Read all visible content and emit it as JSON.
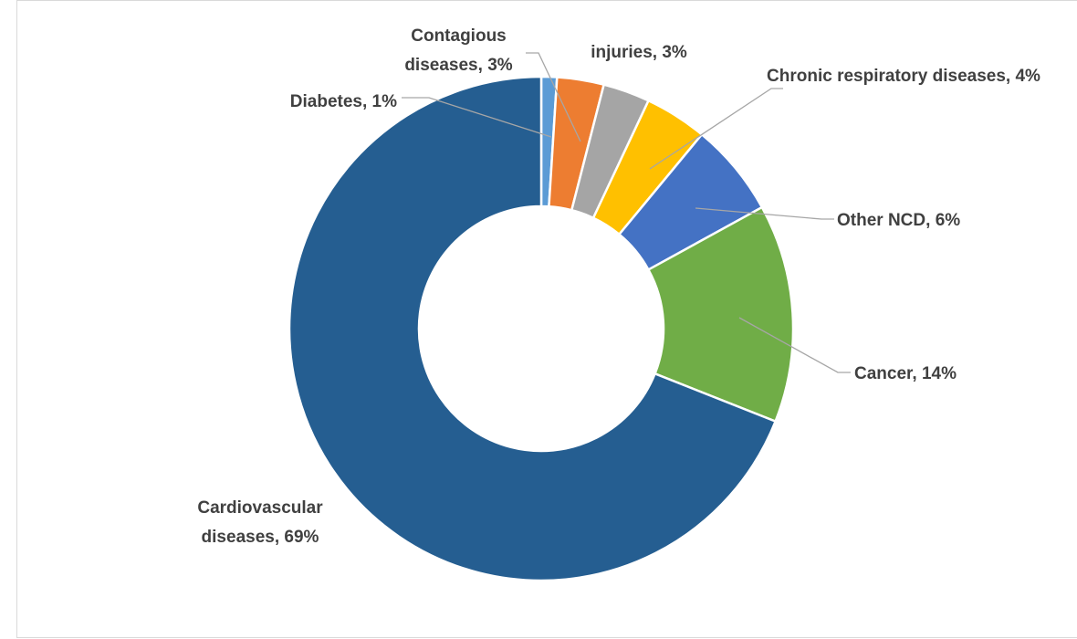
{
  "chart_data": {
    "type": "donut",
    "categories": [
      "Diabetes",
      "Contagious diseases",
      "injuries",
      "Chronic respiratory diseases",
      "Other NCD",
      "Cancer",
      "Cardiovascular diseases"
    ],
    "values": [
      1,
      3,
      3,
      4,
      6,
      14,
      69
    ],
    "value_labels": [
      "1%",
      "3%",
      "3%",
      "4%",
      "6%",
      "14%",
      "69%"
    ],
    "label_separator": ", ",
    "colors": [
      "#5b9bd5",
      "#ed7d31",
      "#a5a5a5",
      "#ffc000",
      "#4472c4",
      "#70ad47",
      "#255e91"
    ]
  }
}
